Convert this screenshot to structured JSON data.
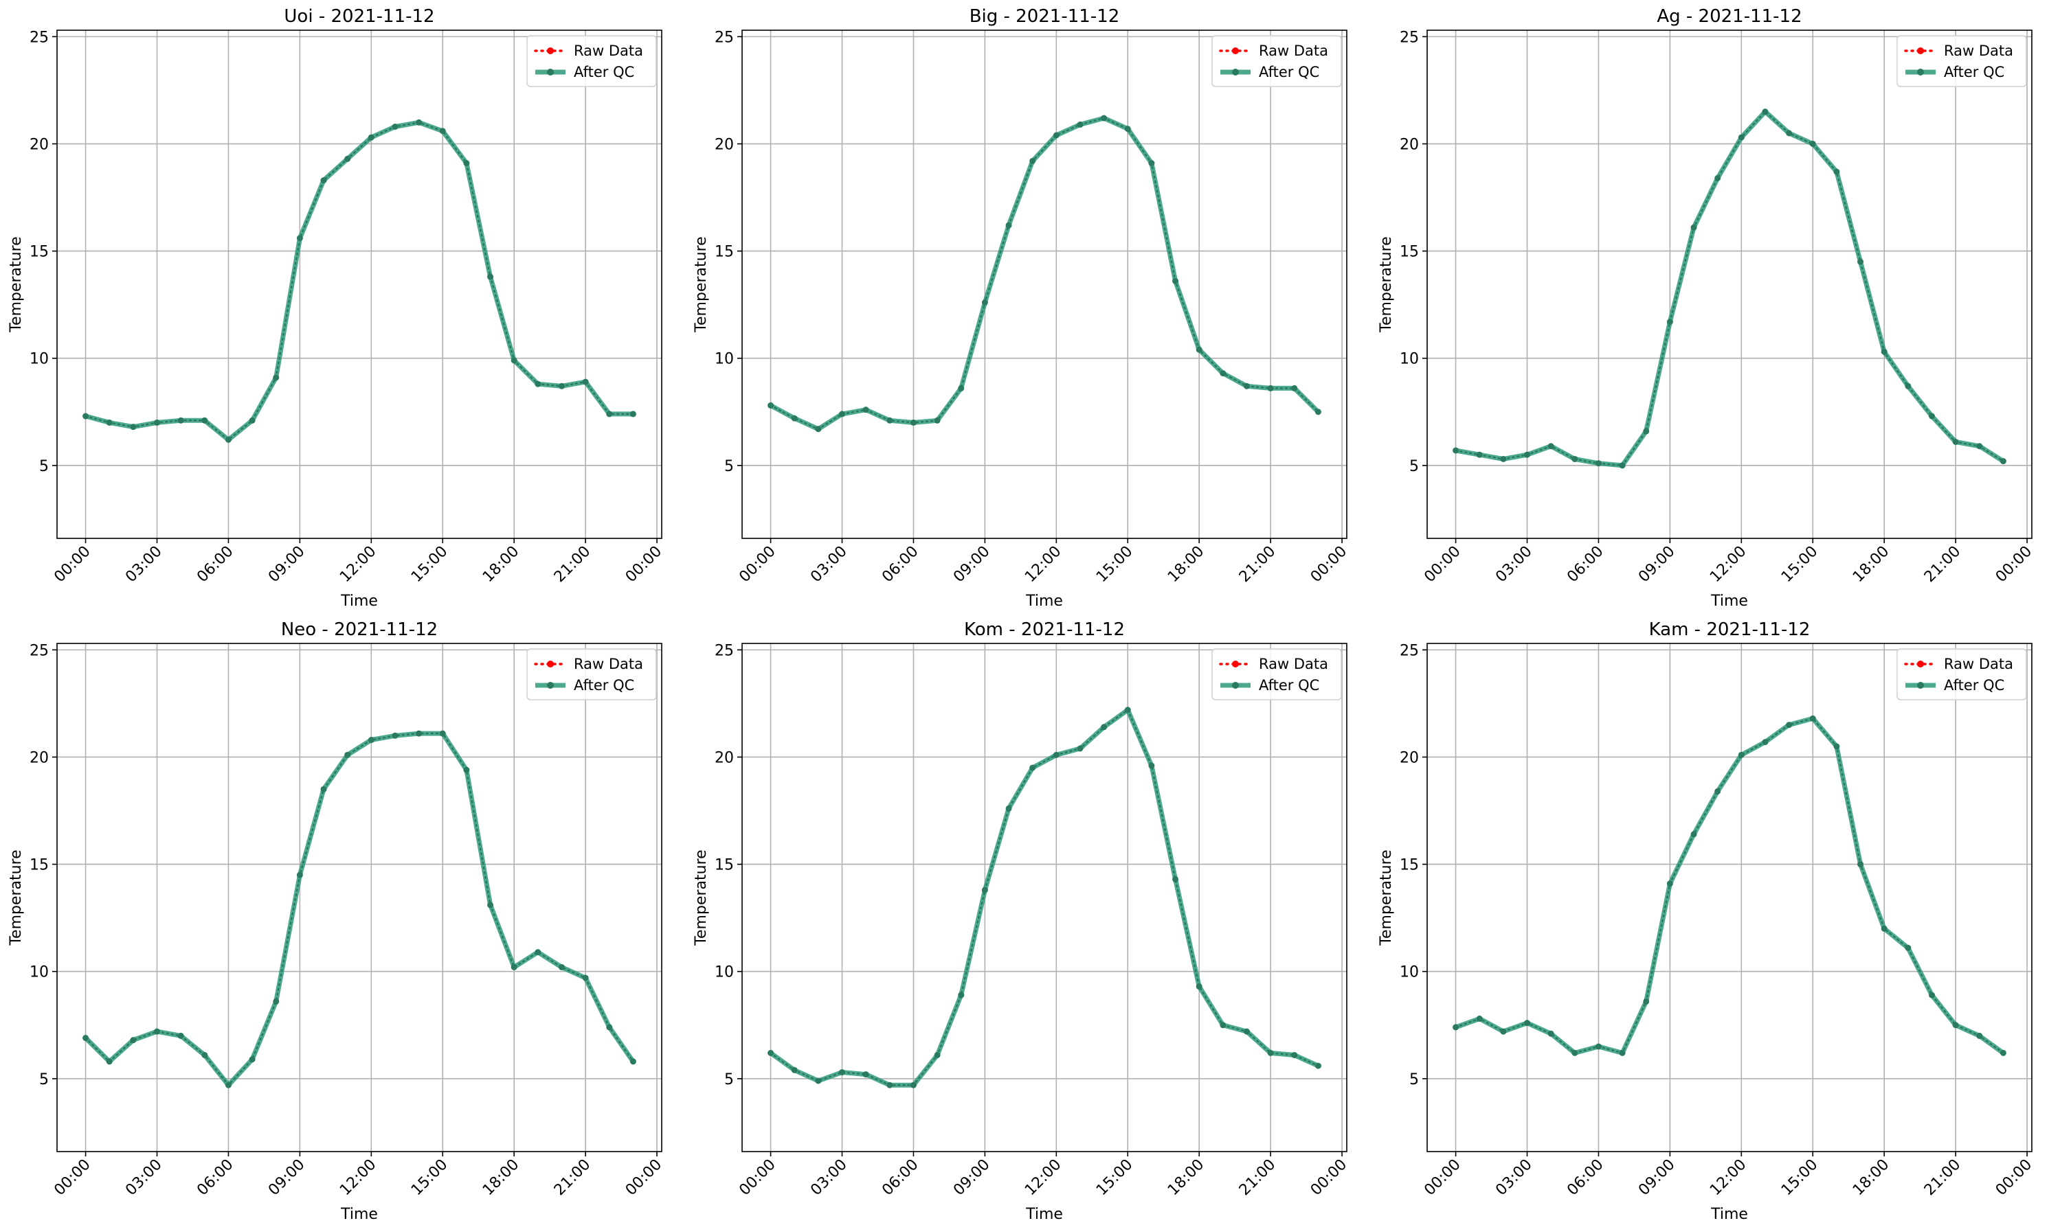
{
  "legend": {
    "raw_label": "Raw Data",
    "qc_label": "After QC",
    "placement": "top-right"
  },
  "colors": {
    "raw": "#ff0000",
    "qc": "#2e9b7b",
    "qc_marker": "#2a7a62",
    "grid": "#b0b0b0",
    "axes": "#000000"
  },
  "chart_data": [
    {
      "type": "line",
      "title": "Uoi - 2021-11-12",
      "xlabel": "Time",
      "ylabel": "Temperature",
      "x_tick_labels": [
        "00:00",
        "03:00",
        "06:00",
        "09:00",
        "12:00",
        "15:00",
        "18:00",
        "21:00",
        "00:00"
      ],
      "y_ticks": [
        5,
        10,
        15,
        20,
        25
      ],
      "ylim": [
        1.6,
        25.3
      ],
      "xlim_hours": [
        -1.2,
        24.2
      ],
      "grid": true,
      "x_hours": [
        0,
        1,
        2,
        3,
        4,
        5,
        6,
        7,
        8,
        9,
        10,
        11,
        12,
        13,
        14,
        15,
        16,
        17,
        18,
        19,
        20,
        21,
        22,
        23
      ],
      "series": [
        {
          "name": "Raw Data",
          "values": [
            7.3,
            7.0,
            6.8,
            7.0,
            7.1,
            7.1,
            6.2,
            7.1,
            9.1,
            15.6,
            18.3,
            19.3,
            20.3,
            20.8,
            21.0,
            20.6,
            19.1,
            13.8,
            9.9,
            8.8,
            8.7,
            8.9,
            7.4,
            7.4
          ]
        },
        {
          "name": "After QC",
          "values": [
            7.3,
            7.0,
            6.8,
            7.0,
            7.1,
            7.1,
            6.2,
            7.1,
            9.1,
            15.6,
            18.3,
            19.3,
            20.3,
            20.8,
            21.0,
            20.6,
            19.1,
            13.8,
            9.9,
            8.8,
            8.7,
            8.9,
            7.4,
            7.4
          ]
        }
      ]
    },
    {
      "type": "line",
      "title": "Big - 2021-11-12",
      "xlabel": "Time",
      "ylabel": "Temperature",
      "x_tick_labels": [
        "00:00",
        "03:00",
        "06:00",
        "09:00",
        "12:00",
        "15:00",
        "18:00",
        "21:00",
        "00:00"
      ],
      "y_ticks": [
        5,
        10,
        15,
        20,
        25
      ],
      "ylim": [
        1.6,
        25.3
      ],
      "xlim_hours": [
        -1.2,
        24.2
      ],
      "grid": true,
      "x_hours": [
        0,
        1,
        2,
        3,
        4,
        5,
        6,
        7,
        8,
        9,
        10,
        11,
        12,
        13,
        14,
        15,
        16,
        17,
        18,
        19,
        20,
        21,
        22,
        23
      ],
      "series": [
        {
          "name": "Raw Data",
          "values": [
            7.8,
            7.2,
            6.7,
            7.4,
            7.6,
            7.1,
            7.0,
            7.1,
            8.6,
            12.6,
            16.2,
            19.2,
            20.4,
            20.9,
            21.2,
            20.7,
            19.1,
            13.6,
            10.4,
            9.3,
            8.7,
            8.6,
            8.6,
            7.5
          ]
        },
        {
          "name": "After QC",
          "values": [
            7.8,
            7.2,
            6.7,
            7.4,
            7.6,
            7.1,
            7.0,
            7.1,
            8.6,
            12.6,
            16.2,
            19.2,
            20.4,
            20.9,
            21.2,
            20.7,
            19.1,
            13.6,
            10.4,
            9.3,
            8.7,
            8.6,
            8.6,
            7.5
          ]
        }
      ]
    },
    {
      "type": "line",
      "title": "Ag - 2021-11-12",
      "xlabel": "Time",
      "ylabel": "Temperature",
      "x_tick_labels": [
        "00:00",
        "03:00",
        "06:00",
        "09:00",
        "12:00",
        "15:00",
        "18:00",
        "21:00",
        "00:00"
      ],
      "y_ticks": [
        5,
        10,
        15,
        20,
        25
      ],
      "ylim": [
        1.6,
        25.3
      ],
      "xlim_hours": [
        -1.2,
        24.2
      ],
      "grid": true,
      "x_hours": [
        0,
        1,
        2,
        3,
        4,
        5,
        6,
        7,
        8,
        9,
        10,
        11,
        12,
        13,
        14,
        15,
        16,
        17,
        18,
        19,
        20,
        21,
        22,
        23
      ],
      "series": [
        {
          "name": "Raw Data",
          "values": [
            5.7,
            5.5,
            5.3,
            5.5,
            5.9,
            5.3,
            5.1,
            5.0,
            6.6,
            11.7,
            16.1,
            18.4,
            20.3,
            21.5,
            20.5,
            20.0,
            18.7,
            14.5,
            10.3,
            8.7,
            7.3,
            6.1,
            5.9,
            5.2
          ]
        },
        {
          "name": "After QC",
          "values": [
            5.7,
            5.5,
            5.3,
            5.5,
            5.9,
            5.3,
            5.1,
            5.0,
            6.6,
            11.7,
            16.1,
            18.4,
            20.3,
            21.5,
            20.5,
            20.0,
            18.7,
            14.5,
            10.3,
            8.7,
            7.3,
            6.1,
            5.9,
            5.2
          ]
        }
      ]
    },
    {
      "type": "line",
      "title": "Neo - 2021-11-12",
      "xlabel": "Time",
      "ylabel": "Temperature",
      "x_tick_labels": [
        "00:00",
        "03:00",
        "06:00",
        "09:00",
        "12:00",
        "15:00",
        "18:00",
        "21:00",
        "00:00"
      ],
      "y_ticks": [
        5,
        10,
        15,
        20,
        25
      ],
      "ylim": [
        1.6,
        25.3
      ],
      "xlim_hours": [
        -1.2,
        24.2
      ],
      "grid": true,
      "x_hours": [
        0,
        1,
        2,
        3,
        4,
        5,
        6,
        7,
        8,
        9,
        10,
        11,
        12,
        13,
        14,
        15,
        16,
        17,
        18,
        19,
        20,
        21,
        22,
        23
      ],
      "series": [
        {
          "name": "Raw Data",
          "values": [
            6.9,
            5.8,
            6.8,
            7.2,
            7.0,
            6.1,
            4.7,
            5.9,
            8.6,
            14.5,
            18.5,
            20.1,
            20.8,
            21.0,
            21.1,
            21.1,
            19.4,
            13.1,
            10.2,
            10.9,
            10.2,
            9.7,
            7.4,
            5.8
          ]
        },
        {
          "name": "After QC",
          "values": [
            6.9,
            5.8,
            6.8,
            7.2,
            7.0,
            6.1,
            4.7,
            5.9,
            8.6,
            14.5,
            18.5,
            20.1,
            20.8,
            21.0,
            21.1,
            21.1,
            19.4,
            13.1,
            10.2,
            10.9,
            10.2,
            9.7,
            7.4,
            5.8
          ]
        }
      ]
    },
    {
      "type": "line",
      "title": "Kom - 2021-11-12",
      "xlabel": "Time",
      "ylabel": "Temperature",
      "x_tick_labels": [
        "00:00",
        "03:00",
        "06:00",
        "09:00",
        "12:00",
        "15:00",
        "18:00",
        "21:00",
        "00:00"
      ],
      "y_ticks": [
        5,
        10,
        15,
        20,
        25
      ],
      "ylim": [
        1.6,
        25.3
      ],
      "xlim_hours": [
        -1.2,
        24.2
      ],
      "grid": true,
      "x_hours": [
        0,
        1,
        2,
        3,
        4,
        5,
        6,
        7,
        8,
        9,
        10,
        11,
        12,
        13,
        14,
        15,
        16,
        17,
        18,
        19,
        20,
        21,
        22,
        23
      ],
      "series": [
        {
          "name": "Raw Data",
          "values": [
            6.2,
            5.4,
            4.9,
            5.3,
            5.2,
            4.7,
            4.7,
            6.1,
            8.9,
            13.8,
            17.6,
            19.5,
            20.1,
            20.4,
            21.4,
            22.2,
            19.6,
            14.3,
            9.3,
            7.5,
            7.2,
            6.2,
            6.1,
            5.6
          ]
        },
        {
          "name": "After QC",
          "values": [
            6.2,
            5.4,
            4.9,
            5.3,
            5.2,
            4.7,
            4.7,
            6.1,
            8.9,
            13.8,
            17.6,
            19.5,
            20.1,
            20.4,
            21.4,
            22.2,
            19.6,
            14.3,
            9.3,
            7.5,
            7.2,
            6.2,
            6.1,
            5.6
          ]
        }
      ]
    },
    {
      "type": "line",
      "title": "Kam - 2021-11-12",
      "xlabel": "Time",
      "ylabel": "Temperature",
      "x_tick_labels": [
        "00:00",
        "03:00",
        "06:00",
        "09:00",
        "12:00",
        "15:00",
        "18:00",
        "21:00",
        "00:00"
      ],
      "y_ticks": [
        5,
        10,
        15,
        20,
        25
      ],
      "ylim": [
        1.6,
        25.3
      ],
      "xlim_hours": [
        -1.2,
        24.2
      ],
      "grid": true,
      "x_hours": [
        0,
        1,
        2,
        3,
        4,
        5,
        6,
        7,
        8,
        9,
        10,
        11,
        12,
        13,
        14,
        15,
        16,
        17,
        18,
        19,
        20,
        21,
        22,
        23
      ],
      "series": [
        {
          "name": "Raw Data",
          "values": [
            7.4,
            7.8,
            7.2,
            7.6,
            7.1,
            6.2,
            6.5,
            6.2,
            8.6,
            14.1,
            16.4,
            18.4,
            20.1,
            20.7,
            21.5,
            21.8,
            20.5,
            15.0,
            12.0,
            11.1,
            8.9,
            7.5,
            7.0,
            6.2
          ]
        },
        {
          "name": "After QC",
          "values": [
            7.4,
            7.8,
            7.2,
            7.6,
            7.1,
            6.2,
            6.5,
            6.2,
            8.6,
            14.1,
            16.4,
            18.4,
            20.1,
            20.7,
            21.5,
            21.8,
            20.5,
            15.0,
            12.0,
            11.1,
            8.9,
            7.5,
            7.0,
            6.2
          ]
        }
      ]
    }
  ]
}
